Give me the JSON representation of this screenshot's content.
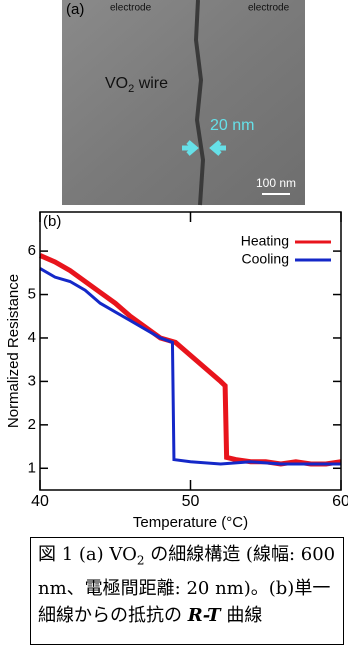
{
  "panel_a": {
    "label": "(a)",
    "electrode_left": "electrode",
    "electrode_right": "electrode",
    "wire_label": {
      "base": "VO",
      "sub": "2",
      "rest": " wire"
    },
    "gap_label": "20 nm",
    "scale_bar": "100 nm"
  },
  "chart_data": {
    "type": "line",
    "panel_label": "(b)",
    "x_label": "Temperature (°C)",
    "y_label": "Normalized Resistance",
    "xlim": [
      40,
      60
    ],
    "ylim": [
      0.5,
      6.9
    ],
    "xticks": [
      40,
      50,
      60
    ],
    "yticks": [
      1,
      2,
      3,
      4,
      5,
      6
    ],
    "legend": "upper right",
    "series": [
      {
        "name": "Heating",
        "color": "#e8141c",
        "x": [
          40,
          41,
          42,
          43,
          44,
          45,
          46,
          47,
          48,
          49,
          50,
          51,
          52,
          52.3,
          52.4,
          53,
          54,
          55,
          56,
          57,
          58,
          59,
          60
        ],
        "values": [
          5.9,
          5.75,
          5.55,
          5.3,
          5.05,
          4.8,
          4.5,
          4.25,
          4.0,
          3.9,
          3.6,
          3.3,
          3.0,
          2.9,
          1.25,
          1.2,
          1.15,
          1.15,
          1.1,
          1.15,
          1.1,
          1.1,
          1.15
        ]
      },
      {
        "name": "Cooling",
        "color": "#1428c8",
        "x": [
          40,
          41,
          42,
          43,
          44,
          45,
          46,
          47,
          48,
          48.8,
          48.9,
          50,
          52,
          54,
          56,
          58,
          60
        ],
        "values": [
          5.6,
          5.4,
          5.3,
          5.1,
          4.8,
          4.6,
          4.4,
          4.2,
          4.0,
          3.9,
          1.2,
          1.15,
          1.1,
          1.15,
          1.1,
          1.1,
          1.1
        ]
      }
    ]
  },
  "caption": {
    "parts": [
      "図 1 (a) VO",
      "2",
      " の細線構造 (線幅: 600 nm、電極間距離: 20 nm)。(b)単一細線からの抵抗の ",
      "R-T",
      " 曲線"
    ]
  }
}
